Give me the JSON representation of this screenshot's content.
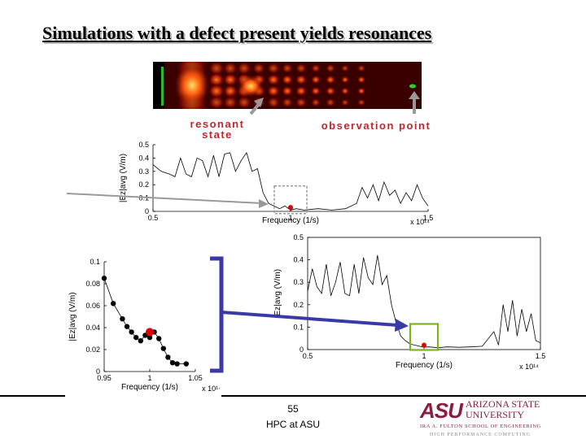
{
  "slide": {
    "title": "Simulations with a defect present yields resonances",
    "page_number": "55",
    "footer_text": "HPC at ASU"
  },
  "annotations": {
    "resonant_state": "resonant\nstate",
    "observation_point": "observation point"
  },
  "logo": {
    "mark": "ASU",
    "line1": "ARIZONA STATE",
    "line2": "UNIVERSITY",
    "line3": "IRA A. FULTON SCHOOL OF ENGINEERING",
    "line4": "HIGH PERFORMANCE COMPUTING",
    "brand_color": "#8c1d40"
  },
  "chart_data": [
    {
      "id": "small-spectrum",
      "type": "line",
      "xlabel": "Frequency (1/s)",
      "ylabel": "|Ez|avg (V/m)",
      "x_scale_note": "x 10¹⁴",
      "xlim": [
        0.5,
        1.5
      ],
      "ylim": [
        0,
        0.5
      ],
      "xticks": [
        "0.5",
        "1",
        "1.5"
      ],
      "yticks": [
        "0",
        "0.1",
        "0.2",
        "0.3",
        "0.4",
        "0.5"
      ],
      "series": [
        {
          "name": "spectrum",
          "x": [
            0.5,
            0.53,
            0.56,
            0.58,
            0.6,
            0.62,
            0.64,
            0.66,
            0.68,
            0.7,
            0.72,
            0.74,
            0.76,
            0.78,
            0.8,
            0.82,
            0.84,
            0.86,
            0.88,
            0.9,
            0.92,
            0.94,
            0.96,
            0.98,
            1.0,
            1.02,
            1.05,
            1.1,
            1.15,
            1.2,
            1.24,
            1.26,
            1.28,
            1.3,
            1.32,
            1.34,
            1.36,
            1.38,
            1.4,
            1.42,
            1.44,
            1.46,
            1.48,
            1.5
          ],
          "y": [
            0.35,
            0.3,
            0.28,
            0.26,
            0.4,
            0.28,
            0.26,
            0.4,
            0.38,
            0.26,
            0.42,
            0.26,
            0.43,
            0.44,
            0.3,
            0.38,
            0.44,
            0.3,
            0.32,
            0.14,
            0.06,
            0.04,
            0.02,
            0.04,
            0.01,
            0.02,
            0.01,
            0.02,
            0.01,
            0.02,
            0.06,
            0.18,
            0.1,
            0.2,
            0.08,
            0.22,
            0.12,
            0.16,
            0.06,
            0.14,
            0.08,
            0.2,
            0.1,
            0.04
          ]
        }
      ],
      "highlight": {
        "x": 1.0,
        "y": 0.03
      }
    },
    {
      "id": "resonance-zoom",
      "type": "line",
      "xlabel": "Frequency (1/s)",
      "ylabel": "|Ez|avg (V/m)",
      "x_scale_note": "x 10¹⁴",
      "xlim": [
        0.95,
        1.05
      ],
      "ylim": [
        0,
        0.1
      ],
      "xticks": [
        "0.95",
        "1",
        "1.05"
      ],
      "yticks": [
        "0",
        "0.02",
        "0.04",
        "0.06",
        "0.08",
        "0.1"
      ],
      "series": [
        {
          "name": "spectrum",
          "x": [
            0.95,
            0.96,
            0.97,
            0.975,
            0.98,
            0.985,
            0.99,
            0.995,
            1.0,
            1.005,
            1.01,
            1.015,
            1.02,
            1.025,
            1.03,
            1.04
          ],
          "y": [
            0.085,
            0.062,
            0.048,
            0.041,
            0.036,
            0.031,
            0.028,
            0.033,
            0.031,
            0.036,
            0.03,
            0.021,
            0.013,
            0.008,
            0.007,
            0.007
          ]
        }
      ],
      "highlight": {
        "x": 1.0,
        "y": 0.036
      }
    },
    {
      "id": "large-spectrum",
      "type": "line",
      "xlabel": "Frequency (1/s)",
      "ylabel": "|Ez|avg (V/m)",
      "x_scale_note": "x 10¹⁴",
      "xlim": [
        0.5,
        1.5
      ],
      "ylim": [
        0,
        0.5
      ],
      "xticks": [
        "0.5",
        "1",
        "1.5"
      ],
      "yticks": [
        "0",
        "0.1",
        "0.2",
        "0.3",
        "0.4",
        "0.5"
      ],
      "series": [
        {
          "name": "spectrum",
          "x": [
            0.5,
            0.52,
            0.54,
            0.56,
            0.58,
            0.6,
            0.62,
            0.64,
            0.66,
            0.68,
            0.7,
            0.72,
            0.74,
            0.76,
            0.78,
            0.8,
            0.82,
            0.84,
            0.86,
            0.88,
            0.9,
            0.92,
            0.94,
            0.96,
            0.98,
            1.0,
            1.02,
            1.04,
            1.06,
            1.08,
            1.1,
            1.15,
            1.2,
            1.25,
            1.3,
            1.32,
            1.34,
            1.36,
            1.38,
            1.4,
            1.42,
            1.44,
            1.46,
            1.48,
            1.5
          ],
          "y": [
            0.26,
            0.36,
            0.28,
            0.25,
            0.38,
            0.24,
            0.3,
            0.39,
            0.25,
            0.24,
            0.38,
            0.25,
            0.41,
            0.32,
            0.29,
            0.42,
            0.29,
            0.33,
            0.2,
            0.12,
            0.06,
            0.04,
            0.025,
            0.02,
            0.015,
            0.01,
            0.012,
            0.01,
            0.008,
            0.01,
            0.012,
            0.01,
            0.012,
            0.015,
            0.08,
            0.02,
            0.2,
            0.08,
            0.22,
            0.06,
            0.18,
            0.08,
            0.16,
            0.04,
            0.03
          ]
        }
      ],
      "highlight": {
        "x": 1.0,
        "y": 0.02
      }
    }
  ]
}
